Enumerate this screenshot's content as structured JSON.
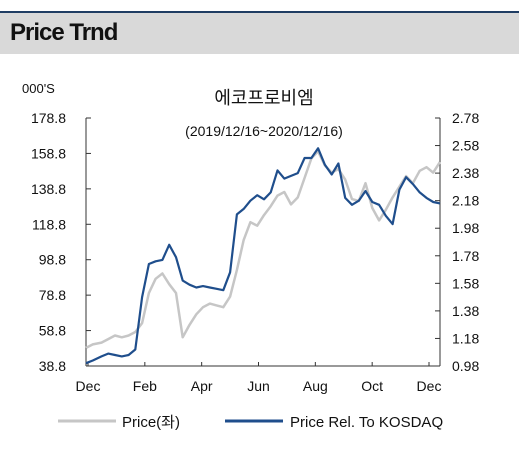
{
  "section": {
    "title": "Price Trnd"
  },
  "chart_data": {
    "type": "line",
    "title": "에코프로비엠",
    "subtitle": "(2019/12/16~2020/12/16)",
    "left_axis_unit": "000'S",
    "xlabel": "",
    "x_ticks": [
      "Dec",
      "Feb",
      "Apr",
      "Jun",
      "Aug",
      "Oct",
      "Dec"
    ],
    "left_ticks": [
      "178.8",
      "158.8",
      "138.8",
      "118.8",
      "98.8",
      "78.8",
      "58.8",
      "38.8"
    ],
    "right_ticks": [
      "2.78",
      "2.58",
      "2.38",
      "2.18",
      "1.98",
      "1.78",
      "1.58",
      "1.38",
      "1.18",
      "0.98"
    ],
    "ylim_left": [
      38.8,
      178.8
    ],
    "ylim_right": [
      0.98,
      2.78
    ],
    "xlim": [
      "2019-12-16",
      "2020-12-16"
    ],
    "grid": false,
    "legend_position": "bottom",
    "colors": {
      "price": "#c6c6c6",
      "relative": "#1f4e8c",
      "header_bg": "#d9d9d9",
      "header_line": "#1f3d63"
    },
    "series": [
      {
        "name": "Price(좌)",
        "axis": "left",
        "x": [
          "2019-12-16",
          "2019-12-23",
          "2020-01-01",
          "2020-01-08",
          "2020-01-15",
          "2020-01-22",
          "2020-01-29",
          "2020-02-05",
          "2020-02-12",
          "2020-02-19",
          "2020-02-26",
          "2020-03-04",
          "2020-03-11",
          "2020-03-18",
          "2020-03-25",
          "2020-04-01",
          "2020-04-08",
          "2020-04-15",
          "2020-04-22",
          "2020-04-29",
          "2020-05-06",
          "2020-05-13",
          "2020-05-20",
          "2020-05-27",
          "2020-06-03",
          "2020-06-10",
          "2020-06-17",
          "2020-06-24",
          "2020-07-01",
          "2020-07-08",
          "2020-07-15",
          "2020-07-22",
          "2020-07-29",
          "2020-08-05",
          "2020-08-12",
          "2020-08-19",
          "2020-08-26",
          "2020-09-02",
          "2020-09-09",
          "2020-09-16",
          "2020-09-23",
          "2020-09-30",
          "2020-10-07",
          "2020-10-14",
          "2020-10-21",
          "2020-10-28",
          "2020-11-04",
          "2020-11-11",
          "2020-11-18",
          "2020-11-25",
          "2020-12-02",
          "2020-12-09",
          "2020-12-16"
        ],
        "y": [
          49,
          51,
          52,
          54,
          56,
          55,
          56,
          58,
          63,
          80,
          88,
          91,
          85,
          80,
          55,
          62,
          68,
          72,
          74,
          73,
          72,
          78,
          93,
          110,
          120,
          118,
          124,
          129,
          135,
          137,
          130,
          134,
          145,
          156,
          160,
          152,
          148,
          150,
          144,
          133,
          132,
          142,
          128,
          121,
          127,
          134,
          140,
          146,
          142,
          149,
          151,
          148,
          154
        ]
      },
      {
        "name": "Price Rel. To KOSDAQ",
        "axis": "right",
        "x": [
          "2019-12-16",
          "2019-12-23",
          "2020-01-01",
          "2020-01-08",
          "2020-01-15",
          "2020-01-22",
          "2020-01-29",
          "2020-02-05",
          "2020-02-12",
          "2020-02-19",
          "2020-02-26",
          "2020-03-04",
          "2020-03-11",
          "2020-03-18",
          "2020-03-25",
          "2020-04-01",
          "2020-04-08",
          "2020-04-15",
          "2020-04-22",
          "2020-04-29",
          "2020-05-06",
          "2020-05-13",
          "2020-05-20",
          "2020-05-27",
          "2020-06-03",
          "2020-06-10",
          "2020-06-17",
          "2020-06-24",
          "2020-07-01",
          "2020-07-08",
          "2020-07-15",
          "2020-07-22",
          "2020-07-29",
          "2020-08-05",
          "2020-08-12",
          "2020-08-19",
          "2020-08-26",
          "2020-09-02",
          "2020-09-09",
          "2020-09-16",
          "2020-09-23",
          "2020-09-30",
          "2020-10-07",
          "2020-10-14",
          "2020-10-21",
          "2020-10-28",
          "2020-11-04",
          "2020-11-11",
          "2020-11-18",
          "2020-11-25",
          "2020-12-02",
          "2020-12-09",
          "2020-12-16"
        ],
        "y": [
          1.0,
          1.02,
          1.05,
          1.07,
          1.06,
          1.05,
          1.06,
          1.1,
          1.48,
          1.72,
          1.74,
          1.75,
          1.86,
          1.77,
          1.6,
          1.57,
          1.55,
          1.56,
          1.55,
          1.54,
          1.53,
          1.66,
          2.08,
          2.12,
          2.18,
          2.22,
          2.19,
          2.24,
          2.4,
          2.34,
          2.36,
          2.38,
          2.49,
          2.49,
          2.56,
          2.44,
          2.37,
          2.45,
          2.2,
          2.15,
          2.18,
          2.25,
          2.17,
          2.15,
          2.07,
          2.01,
          2.26,
          2.35,
          2.3,
          2.24,
          2.2,
          2.17,
          2.16
        ]
      }
    ]
  }
}
